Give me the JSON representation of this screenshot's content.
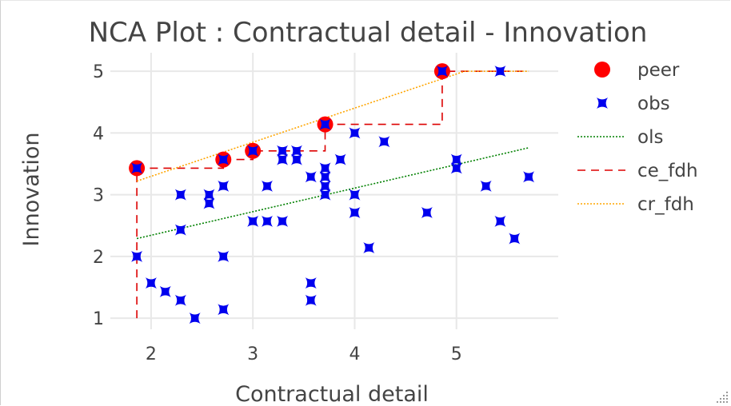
{
  "chart_data": {
    "type": "scatter",
    "title": "NCA Plot : Contractual detail - Innovation",
    "xlabel": "Contractual detail",
    "ylabel": "Innovation",
    "xlim": [
      1.6,
      6.0
    ],
    "ylim": [
      0.82,
      5.3
    ],
    "xticks": [
      2,
      3,
      4,
      5
    ],
    "yticks": [
      1,
      2,
      3,
      4,
      5
    ],
    "grid": true,
    "legend_position": "right",
    "colors": {
      "peer": "#ff0000",
      "obs": "#0000ee",
      "ols": "#008000",
      "ce_fdh": "#dd0000",
      "cr_fdh": "#ffa500",
      "grid": "#e8e8e8",
      "text": "#444444"
    },
    "series": [
      {
        "name": "peer",
        "marker": "circle",
        "points": [
          [
            1.86,
            3.43
          ],
          [
            2.71,
            3.57
          ],
          [
            3.0,
            3.71
          ],
          [
            3.71,
            4.14
          ],
          [
            4.86,
            5.0
          ]
        ]
      },
      {
        "name": "obs",
        "marker": "star4",
        "points": [
          [
            1.86,
            3.43
          ],
          [
            1.86,
            2.0
          ],
          [
            2.0,
            1.57
          ],
          [
            2.14,
            1.43
          ],
          [
            2.29,
            1.29
          ],
          [
            2.43,
            1.0
          ],
          [
            2.29,
            3.0
          ],
          [
            2.29,
            2.43
          ],
          [
            2.57,
            3.0
          ],
          [
            2.57,
            2.86
          ],
          [
            2.71,
            3.57
          ],
          [
            2.71,
            3.14
          ],
          [
            2.71,
            2.0
          ],
          [
            2.71,
            1.14
          ],
          [
            3.0,
            3.71
          ],
          [
            3.0,
            2.57
          ],
          [
            3.14,
            3.14
          ],
          [
            3.14,
            2.57
          ],
          [
            3.29,
            3.71
          ],
          [
            3.29,
            3.57
          ],
          [
            3.29,
            2.57
          ],
          [
            3.43,
            3.71
          ],
          [
            3.43,
            3.57
          ],
          [
            3.57,
            3.29
          ],
          [
            3.57,
            1.57
          ],
          [
            3.57,
            1.29
          ],
          [
            3.71,
            4.14
          ],
          [
            3.71,
            3.43
          ],
          [
            3.71,
            3.29
          ],
          [
            3.71,
            3.14
          ],
          [
            3.71,
            3.0
          ],
          [
            3.86,
            3.57
          ],
          [
            4.0,
            4.0
          ],
          [
            4.0,
            3.0
          ],
          [
            4.0,
            2.71
          ],
          [
            4.14,
            2.14
          ],
          [
            4.29,
            3.86
          ],
          [
            4.71,
            2.71
          ],
          [
            4.86,
            5.0
          ],
          [
            5.0,
            3.57
          ],
          [
            5.0,
            3.43
          ],
          [
            5.29,
            3.14
          ],
          [
            5.43,
            5.0
          ],
          [
            5.43,
            2.57
          ],
          [
            5.57,
            2.29
          ],
          [
            5.71,
            3.29
          ]
        ]
      },
      {
        "name": "ols",
        "line": "dotted",
        "points": [
          [
            1.86,
            2.29
          ],
          [
            5.71,
            3.76
          ]
        ]
      },
      {
        "name": "ce_fdh",
        "line": "dashed",
        "points": [
          [
            1.86,
            1.0
          ],
          [
            1.86,
            3.43
          ],
          [
            2.71,
            3.43
          ],
          [
            2.71,
            3.57
          ],
          [
            3.0,
            3.57
          ],
          [
            3.0,
            3.71
          ],
          [
            3.71,
            3.71
          ],
          [
            3.71,
            4.14
          ],
          [
            4.86,
            4.14
          ],
          [
            4.86,
            5.0
          ],
          [
            5.71,
            5.0
          ]
        ]
      },
      {
        "name": "cr_fdh",
        "line": "dotted",
        "points": [
          [
            1.86,
            3.22
          ],
          [
            5.08,
            5.0
          ],
          [
            5.71,
            5.0
          ]
        ]
      }
    ]
  }
}
